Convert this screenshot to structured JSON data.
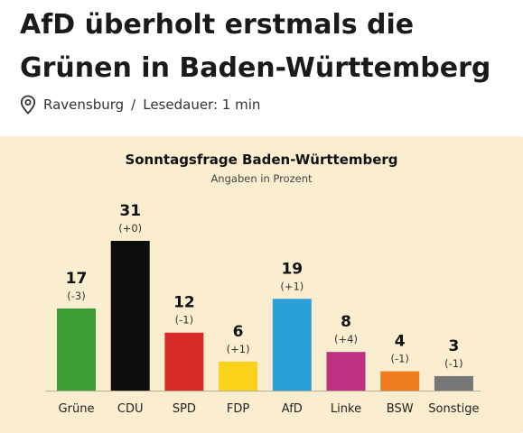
{
  "article": {
    "headline": "AfD überholt erstmals die Grünen in Baden-Württemberg",
    "location": "Ravensburg",
    "separator": "/",
    "reading_time": "Lesedauer: 1 min"
  },
  "chart_data": {
    "type": "bar",
    "title": "Sonntagsfrage Baden-Württemberg",
    "subtitle": "Angaben in Prozent",
    "xlabel": "",
    "ylabel": "",
    "ylim": [
      0,
      31
    ],
    "grid": false,
    "categories": [
      "Grüne",
      "CDU",
      "SPD",
      "FDP",
      "AfD",
      "Linke",
      "BSW",
      "Sonstige"
    ],
    "values": [
      17,
      31,
      12,
      6,
      19,
      8,
      4,
      3
    ],
    "changes": [
      "(-3)",
      "(+0)",
      "(-1)",
      "(+1)",
      "(+1)",
      "(+4)",
      "(-1)",
      "(-1)"
    ],
    "colors": [
      "#3a9e35",
      "#0d0d0d",
      "#d62b27",
      "#fbd21a",
      "#2a9fd8",
      "#c03081",
      "#ef7d1f",
      "#767676"
    ]
  },
  "icons": {
    "location": "map-pin-icon"
  }
}
